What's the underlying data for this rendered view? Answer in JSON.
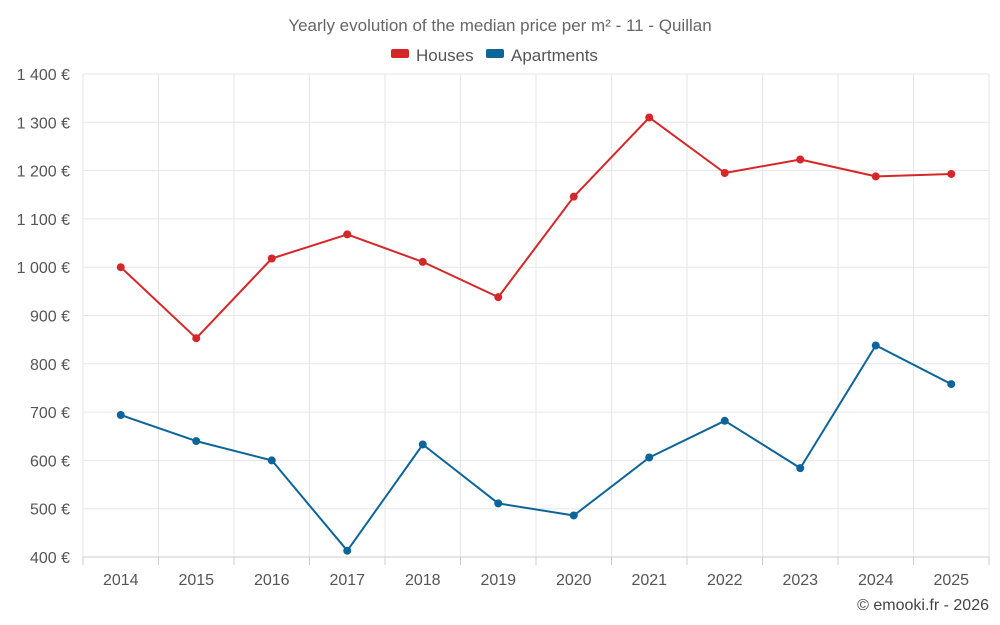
{
  "chart_data": {
    "type": "line",
    "title": "Yearly evolution of the median price per m² - 11 - Quillan",
    "categories": [
      "2014",
      "2015",
      "2016",
      "2017",
      "2018",
      "2019",
      "2020",
      "2021",
      "2022",
      "2023",
      "2024",
      "2025"
    ],
    "y_ticks": [
      400,
      500,
      600,
      700,
      800,
      900,
      1000,
      1100,
      1200,
      1300,
      1400
    ],
    "y_tick_labels": [
      "400 €",
      "500 €",
      "600 €",
      "700 €",
      "800 €",
      "900 €",
      "1 000 €",
      "1 100 €",
      "1 200 €",
      "1 300 €",
      "1 400 €"
    ],
    "ylim": [
      400,
      1400
    ],
    "grid": true,
    "legend_position": "top-center",
    "series": [
      {
        "name": "Houses",
        "color": "#d62728",
        "values": [
          1000,
          853,
          1018,
          1068,
          1011,
          938,
          1146,
          1310,
          1195,
          1223,
          1188,
          1193
        ]
      },
      {
        "name": "Apartments",
        "color": "#0c6598",
        "values": [
          694,
          640,
          600,
          413,
          633,
          511,
          486,
          606,
          682,
          584,
          838,
          758
        ]
      }
    ],
    "credit": "© emooki.fr - 2026"
  }
}
